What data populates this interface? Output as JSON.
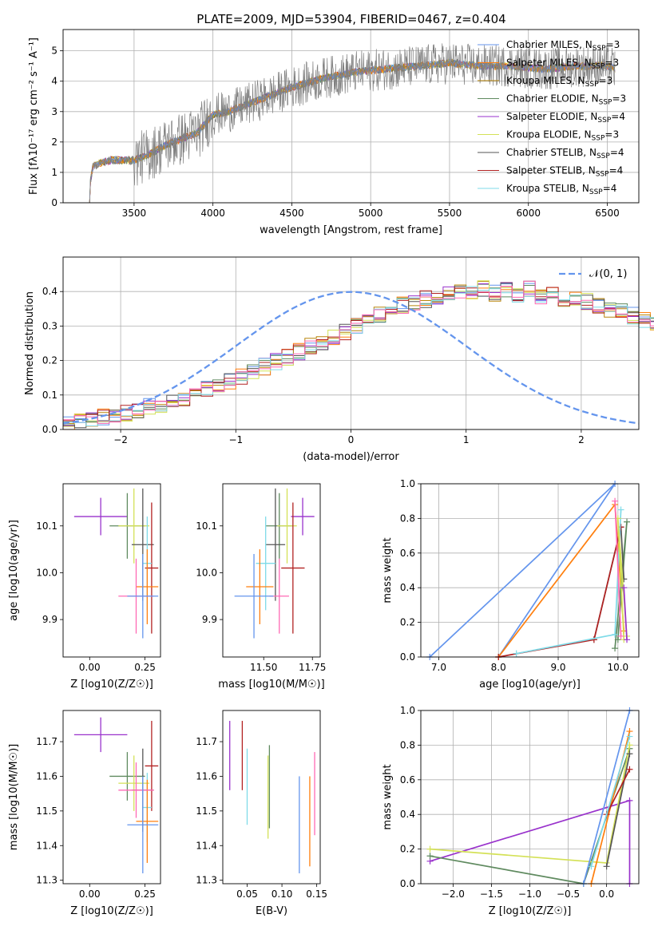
{
  "figure_title": "PLATE=2009, MJD=53904, FIBERID=0467, z=0.404",
  "colors": {
    "chabrier_miles": "#6495ED",
    "salpeter_miles": "#FF7F0E",
    "kroupa_miles": "#B8860B",
    "chabrier_elodie": "#5F8A5F",
    "salpeter_elodie": "#9932CC",
    "kroupa_elodie": "#D4E157",
    "chabrier_stelib": "#555555",
    "salpeter_stelib": "#B22222",
    "kroupa_stelib": "#7FDBE8",
    "pink": "#FF69B4",
    "normal_curve": "#6495ED"
  },
  "chart_data": [
    {
      "id": "spectrum",
      "type": "line",
      "title": "PLATE=2009, MJD=53904, FIBERID=0467, z=0.404",
      "xlabel": "wavelength [Angstrom, rest frame]",
      "ylabel": "Flux [f_λ 10^-17 erg cm^-2 s^-1 A^-1]",
      "xlim": [
        3050,
        6700
      ],
      "ylim": [
        0,
        5.7
      ],
      "xticks": [
        3500,
        4000,
        4500,
        5000,
        5500,
        6000,
        6500
      ],
      "yticks": [
        0,
        1,
        2,
        3,
        4,
        5
      ],
      "grid": true,
      "legend": "upper right",
      "data_x": [
        3200,
        3240,
        3280,
        3350,
        3500,
        3600,
        3700,
        3800,
        3900,
        4000,
        4100,
        4300,
        4500,
        4700,
        4900,
        5100,
        5300,
        5500,
        5700,
        5900,
        6100,
        6300,
        6500,
        6550
      ],
      "data_y": [
        0.0,
        1.2,
        1.3,
        1.4,
        1.4,
        1.6,
        1.9,
        2.1,
        2.3,
        2.9,
        3.0,
        3.4,
        3.8,
        4.1,
        4.3,
        4.4,
        4.5,
        4.6,
        4.5,
        4.5,
        4.4,
        4.5,
        4.5,
        4.4
      ],
      "series": [
        {
          "name": "Chabrier MILES, N_SSP=3",
          "color": "#6495ED"
        },
        {
          "name": "Salpeter MILES, N_SSP=3",
          "color": "#FF7F0E"
        },
        {
          "name": "Kroupa MILES, N_SSP=3",
          "color": "#B8860B"
        },
        {
          "name": "Chabrier ELODIE, N_SSP=3",
          "color": "#5F8A5F"
        },
        {
          "name": "Salpeter ELODIE, N_SSP=4",
          "color": "#9932CC"
        },
        {
          "name": "Kroupa ELODIE, N_SSP=3",
          "color": "#D4E157"
        },
        {
          "name": "Chabrier STELIB, N_SSP=4",
          "color": "#555555"
        },
        {
          "name": "Salpeter STELIB, N_SSP=4",
          "color": "#B22222"
        },
        {
          "name": "Kroupa STELIB, N_SSP=4",
          "color": "#7FDBE8"
        }
      ],
      "legend_entries": [
        {
          "prefix": "Chabrier MILES, N",
          "sub": "SSP",
          "suffix": "=3"
        },
        {
          "prefix": "Salpeter MILES, N",
          "sub": "SSP",
          "suffix": "=3"
        },
        {
          "prefix": "Kroupa MILES, N",
          "sub": "SSP",
          "suffix": "=3"
        },
        {
          "prefix": "Chabrier ELODIE, N",
          "sub": "SSP",
          "suffix": "=3"
        },
        {
          "prefix": "Salpeter ELODIE, N",
          "sub": "SSP",
          "suffix": "=4"
        },
        {
          "prefix": "Kroupa ELODIE, N",
          "sub": "SSP",
          "suffix": "=3"
        },
        {
          "prefix": "Chabrier STELIB, N",
          "sub": "SSP",
          "suffix": "=4"
        },
        {
          "prefix": "Salpeter STELIB, N",
          "sub": "SSP",
          "suffix": "=4"
        },
        {
          "prefix": "Kroupa STELIB, N",
          "sub": "SSP",
          "suffix": "=4"
        }
      ]
    },
    {
      "id": "residuals",
      "type": "line",
      "xlabel": "(data-model)/error",
      "ylabel": "Normed distribution",
      "xlim": [
        -2.5,
        2.5
      ],
      "ylim": [
        0,
        0.5
      ],
      "xticks": [
        -2,
        -1,
        0,
        1,
        2
      ],
      "xtick_labels": [
        "−2",
        "−1",
        "0",
        "1",
        "2"
      ],
      "yticks": [
        0.0,
        0.1,
        0.2,
        0.3,
        0.4
      ],
      "grid": true,
      "legend": "upper right",
      "legend_label": "𝒩(0, 1)",
      "bin_width": 0.1,
      "bin_start": -2.5,
      "hist_base": [
        0.018,
        0.022,
        0.028,
        0.035,
        0.04,
        0.048,
        0.056,
        0.065,
        0.072,
        0.082,
        0.092,
        0.105,
        0.118,
        0.128,
        0.14,
        0.155,
        0.168,
        0.182,
        0.196,
        0.21,
        0.225,
        0.24,
        0.255,
        0.268,
        0.285,
        0.3,
        0.318,
        0.333,
        0.348,
        0.36,
        0.37,
        0.378,
        0.385,
        0.39,
        0.395,
        0.398,
        0.41,
        0.395,
        0.405,
        0.39,
        0.41,
        0.385,
        0.395,
        0.38,
        0.375,
        0.37,
        0.36,
        0.35,
        0.34,
        0.33,
        0.32,
        0.31,
        0.295,
        0.28,
        0.265,
        0.25,
        0.235,
        0.22,
        0.205,
        0.19,
        0.178,
        0.165,
        0.15,
        0.135,
        0.122,
        0.11,
        0.098,
        0.088,
        0.078,
        0.07,
        0.062,
        0.055,
        0.05,
        0.045,
        0.04,
        0.035,
        0.032,
        0.03,
        0.028,
        0.025
      ],
      "hist_colors": [
        "#6495ED",
        "#FF7F0E",
        "#B8860B",
        "#5F8A5F",
        "#9932CC",
        "#D4E157",
        "#555555",
        "#B22222",
        "#7FDBE8",
        "#FF69B4"
      ]
    },
    {
      "id": "age_vs_Z",
      "type": "scatter",
      "xlabel": "Z [log10(Z/Z☉)]",
      "ylabel": "age [log10(age/yr)]",
      "xlim": [
        -0.12,
        0.32
      ],
      "ylim": [
        9.82,
        10.19
      ],
      "xticks": [
        0.0,
        0.25
      ],
      "xtick_labels": [
        "0.00",
        "0.25"
      ],
      "yticks": [
        9.9,
        10.0,
        10.1
      ],
      "ytick_labels": [
        "9.9",
        "10.0",
        "10.1"
      ],
      "points": [
        {
          "x": 0.05,
          "y": 10.12,
          "xerr": 0.12,
          "yerr": 0.04,
          "color": "#9932CC"
        },
        {
          "x": 0.17,
          "y": 10.1,
          "xerr": 0.08,
          "yerr": 0.07,
          "color": "#5F8A5F"
        },
        {
          "x": 0.2,
          "y": 10.1,
          "xerr": 0.07,
          "yerr": 0.08,
          "color": "#D4E157"
        },
        {
          "x": 0.24,
          "y": 10.06,
          "xerr": 0.05,
          "yerr": 0.12,
          "color": "#555555"
        },
        {
          "x": 0.28,
          "y": 10.01,
          "xerr": 0.03,
          "yerr": 0.14,
          "color": "#B22222"
        },
        {
          "x": 0.26,
          "y": 10.02,
          "xerr": 0.02,
          "yerr": 0.1,
          "color": "#7FDBE8"
        },
        {
          "x": 0.26,
          "y": 9.97,
          "xerr": 0.05,
          "yerr": 0.08,
          "color": "#FF7F0E"
        },
        {
          "x": 0.21,
          "y": 9.95,
          "xerr": 0.08,
          "yerr": 0.08,
          "color": "#FF69B4"
        },
        {
          "x": 0.24,
          "y": 9.95,
          "xerr": 0.07,
          "yerr": 0.09,
          "color": "#6495ED"
        }
      ]
    },
    {
      "id": "age_vs_mass",
      "type": "scatter",
      "xlabel": "mass [log10(M/M☉)]",
      "ylabel": "",
      "xlim": [
        11.29,
        11.79
      ],
      "ylim": [
        9.82,
        10.19
      ],
      "xticks": [
        11.5,
        11.75
      ],
      "xtick_labels": [
        "11.50",
        "11.75"
      ],
      "yticks": [
        9.9,
        10.0,
        10.1
      ],
      "ytick_labels": [
        "9.9",
        "10.0",
        "10.1"
      ],
      "points": [
        {
          "x": 11.7,
          "y": 10.12,
          "xerr": 0.06,
          "yerr": 0.04,
          "color": "#9932CC"
        },
        {
          "x": 11.58,
          "y": 10.1,
          "xerr": 0.07,
          "yerr": 0.07,
          "color": "#5F8A5F"
        },
        {
          "x": 11.62,
          "y": 10.1,
          "xerr": 0.05,
          "yerr": 0.08,
          "color": "#D4E157"
        },
        {
          "x": 11.56,
          "y": 10.06,
          "xerr": 0.05,
          "yerr": 0.12,
          "color": "#555555"
        },
        {
          "x": 11.65,
          "y": 10.01,
          "xerr": 0.06,
          "yerr": 0.14,
          "color": "#B22222"
        },
        {
          "x": 11.51,
          "y": 10.02,
          "xerr": 0.05,
          "yerr": 0.1,
          "color": "#7FDBE8"
        },
        {
          "x": 11.48,
          "y": 9.97,
          "xerr": 0.07,
          "yerr": 0.08,
          "color": "#FF7F0E"
        },
        {
          "x": 11.58,
          "y": 9.95,
          "xerr": 0.05,
          "yerr": 0.08,
          "color": "#FF69B4"
        },
        {
          "x": 11.45,
          "y": 9.95,
          "xerr": 0.1,
          "yerr": 0.09,
          "color": "#6495ED"
        }
      ]
    },
    {
      "id": "weight_vs_age",
      "type": "line",
      "xlabel": "age [log10(age/yr)]",
      "ylabel": "mass weight",
      "xlim": [
        6.7,
        10.35
      ],
      "ylim": [
        0,
        1.0
      ],
      "xticks": [
        7,
        8,
        9,
        10
      ],
      "yticks": [
        0,
        0.2,
        0.4,
        0.6,
        0.8,
        1.0
      ],
      "ytick_labels": [
        "0.0",
        "0.2",
        "0.4",
        "0.6",
        "0.8",
        "1.0"
      ],
      "grid": true,
      "lines": [
        {
          "color": "#6495ED",
          "x": [
            6.85,
            9.95,
            8.0
          ],
          "y": [
            0.0,
            1.0,
            0.0
          ]
        },
        {
          "color": "#FF7F0E",
          "x": [
            8.0,
            9.95,
            10.1
          ],
          "y": [
            0.0,
            0.88,
            0.15
          ]
        },
        {
          "color": "#5F8A5F",
          "x": [
            9.95,
            10.15,
            10.0
          ],
          "y": [
            0.05,
            0.78,
            0.1
          ]
        },
        {
          "color": "#555555",
          "x": [
            9.6,
            10.05,
            10.1
          ],
          "y": [
            0.1,
            0.75,
            0.45
          ]
        },
        {
          "color": "#B22222",
          "x": [
            8.0,
            9.6,
            10.05
          ],
          "y": [
            0.0,
            0.1,
            0.75
          ]
        },
        {
          "color": "#7FDBE8",
          "x": [
            8.3,
            9.95,
            10.05
          ],
          "y": [
            0.02,
            0.13,
            0.85
          ]
        },
        {
          "color": "#D4E157",
          "x": [
            10.1,
            10.0,
            10.15
          ],
          "y": [
            0.1,
            0.8,
            0.12
          ]
        },
        {
          "color": "#FF69B4",
          "x": [
            9.95,
            10.05
          ],
          "y": [
            0.9,
            0.12
          ]
        },
        {
          "color": "#9932CC",
          "x": [
            10.1,
            10.15
          ],
          "y": [
            0.4,
            0.1
          ]
        }
      ]
    },
    {
      "id": "mass_vs_Z",
      "type": "scatter",
      "xlabel": "Z [log10(Z/Z☉)]",
      "ylabel": "mass [log10(M/M☉)]",
      "xlim": [
        -0.12,
        0.32
      ],
      "ylim": [
        11.29,
        11.79
      ],
      "xticks": [
        0.0,
        0.25
      ],
      "xtick_labels": [
        "0.00",
        "0.25"
      ],
      "yticks": [
        11.3,
        11.4,
        11.5,
        11.6,
        11.7
      ],
      "ytick_labels": [
        "11.3",
        "11.4",
        "11.5",
        "11.6",
        "11.7"
      ],
      "points": [
        {
          "x": 0.05,
          "y": 11.72,
          "xerr": 0.12,
          "yerr": 0.05,
          "color": "#9932CC"
        },
        {
          "x": 0.17,
          "y": 11.6,
          "xerr": 0.08,
          "yerr": 0.07,
          "color": "#5F8A5F"
        },
        {
          "x": 0.2,
          "y": 11.58,
          "xerr": 0.07,
          "yerr": 0.08,
          "color": "#D4E157"
        },
        {
          "x": 0.24,
          "y": 11.56,
          "xerr": 0.05,
          "yerr": 0.12,
          "color": "#555555"
        },
        {
          "x": 0.28,
          "y": 11.63,
          "xerr": 0.03,
          "yerr": 0.13,
          "color": "#B22222"
        },
        {
          "x": 0.26,
          "y": 11.51,
          "xerr": 0.02,
          "yerr": 0.1,
          "color": "#7FDBE8"
        },
        {
          "x": 0.26,
          "y": 11.47,
          "xerr": 0.05,
          "yerr": 0.12,
          "color": "#FF7F0E"
        },
        {
          "x": 0.21,
          "y": 11.56,
          "xerr": 0.08,
          "yerr": 0.08,
          "color": "#FF69B4"
        },
        {
          "x": 0.24,
          "y": 11.46,
          "xerr": 0.07,
          "yerr": 0.14,
          "color": "#6495ED"
        }
      ]
    },
    {
      "id": "mass_vs_ebv",
      "type": "scatter",
      "xlabel": "E(B-V)",
      "ylabel": "",
      "xlim": [
        0.015,
        0.155
      ],
      "ylim": [
        11.29,
        11.79
      ],
      "xticks": [
        0.05,
        0.1,
        0.15
      ],
      "xtick_labels": [
        "0.05",
        "0.10",
        "0.15"
      ],
      "yticks": [
        11.3,
        11.4,
        11.5,
        11.6,
        11.7
      ],
      "ytick_labels": [
        "11.3",
        "11.4",
        "11.5",
        "11.6",
        "11.7"
      ],
      "points": [
        {
          "x": 0.025,
          "y": 11.66,
          "yerr": 0.1,
          "color": "#9932CC"
        },
        {
          "x": 0.043,
          "y": 11.66,
          "yerr": 0.1,
          "color": "#B22222"
        },
        {
          "x": 0.05,
          "y": 11.57,
          "yerr": 0.11,
          "color": "#7FDBE8"
        },
        {
          "x": 0.08,
          "y": 11.54,
          "yerr": 0.12,
          "color": "#D4E157"
        },
        {
          "x": 0.082,
          "y": 11.57,
          "yerr": 0.12,
          "color": "#5F8A5F"
        },
        {
          "x": 0.125,
          "y": 11.46,
          "yerr": 0.14,
          "color": "#6495ED"
        },
        {
          "x": 0.14,
          "y": 11.47,
          "yerr": 0.13,
          "color": "#FF7F0E"
        },
        {
          "x": 0.147,
          "y": 11.55,
          "yerr": 0.12,
          "color": "#FF69B4"
        }
      ]
    },
    {
      "id": "weight_vs_Z",
      "type": "line",
      "xlabel": "Z [log10(Z/Z☉)]",
      "ylabel": "mass weight",
      "xlim": [
        -2.42,
        0.42
      ],
      "ylim": [
        0,
        1.0
      ],
      "xticks": [
        -2.0,
        -1.5,
        -1.0,
        -0.5,
        0.0
      ],
      "xtick_labels": [
        "−2.0",
        "−1.5",
        "−1.0",
        "−0.5",
        "0.0"
      ],
      "yticks": [
        0,
        0.2,
        0.4,
        0.6,
        0.8,
        1.0
      ],
      "ytick_labels": [
        "0.0",
        "0.2",
        "0.4",
        "0.6",
        "0.8",
        "1.0"
      ],
      "grid": true,
      "lines": [
        {
          "color": "#9932CC",
          "x": [
            -2.3,
            0.3,
            0.3
          ],
          "y": [
            0.13,
            0.48,
            0.0
          ]
        },
        {
          "color": "#5F8A5F",
          "x": [
            -2.3,
            -0.3,
            0.3
          ],
          "y": [
            0.16,
            0.0,
            0.78
          ]
        },
        {
          "color": "#D4E157",
          "x": [
            -2.3,
            0.0,
            0.3
          ],
          "y": [
            0.2,
            0.12,
            0.8
          ]
        },
        {
          "color": "#6495ED",
          "x": [
            -0.3,
            0.3
          ],
          "y": [
            0.0,
            1.0
          ]
        },
        {
          "color": "#FF7F0E",
          "x": [
            -0.2,
            0.3
          ],
          "y": [
            0.0,
            0.88
          ]
        },
        {
          "color": "#555555",
          "x": [
            0.0,
            0.3
          ],
          "y": [
            0.1,
            0.75
          ]
        },
        {
          "color": "#B22222",
          "x": [
            0.0,
            0.3
          ],
          "y": [
            0.4,
            0.66
          ]
        },
        {
          "color": "#7FDBE8",
          "x": [
            -0.2,
            0.3
          ],
          "y": [
            0.1,
            0.85
          ]
        }
      ]
    }
  ]
}
